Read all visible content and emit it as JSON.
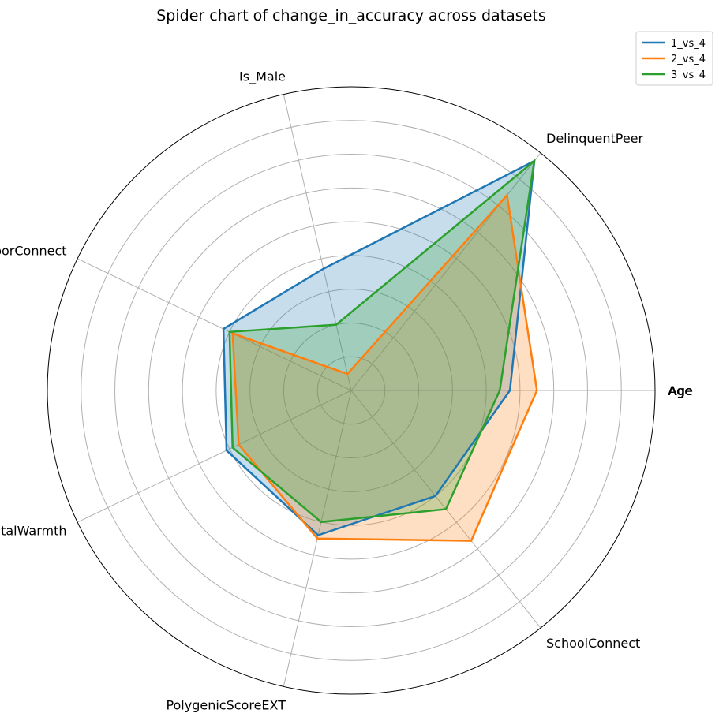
{
  "chart_data": {
    "type": "radar",
    "title": "Spider chart of change_in_accuracy across datasets",
    "axes": [
      "Age",
      "DelinquentPeer",
      "Is_Male",
      "NeighborConnect",
      "ParentalWarmth",
      "PolygenicScoreEXT",
      "SchoolConnect"
    ],
    "extra_axis_label": "Age",
    "rlim": [
      0,
      9
    ],
    "grid": true,
    "legend_position": "top-right",
    "series": [
      {
        "name": "1_vs_4",
        "color": "#1f77b4",
        "values": [
          4.7,
          8.7,
          3.7,
          4.2,
          4.1,
          4.4,
          4.0
        ],
        "fill_alpha": 0.25
      },
      {
        "name": "2_vs_4",
        "color": "#ff7f0e",
        "values": [
          5.5,
          7.4,
          0.5,
          3.9,
          3.7,
          4.5,
          5.7
        ],
        "fill_alpha": 0.25
      },
      {
        "name": "3_vs_4",
        "color": "#2ca02c",
        "values": [
          4.4,
          8.7,
          2.0,
          4.0,
          3.9,
          4.0,
          4.5
        ],
        "fill_alpha": 0.25
      }
    ]
  }
}
